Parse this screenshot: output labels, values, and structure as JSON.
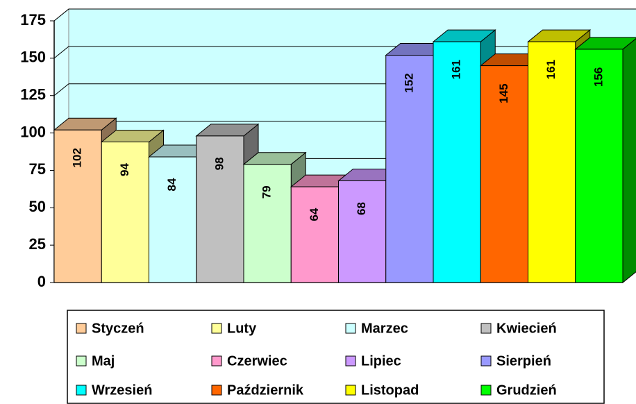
{
  "chart_data": {
    "type": "bar",
    "series": [
      {
        "name": "Styczeń",
        "color": "#ffcc99",
        "values": [
          102
        ]
      },
      {
        "name": "Luty",
        "color": "#ffff99",
        "values": [
          94
        ]
      },
      {
        "name": "Marzec",
        "color": "#ccffff",
        "values": [
          84
        ]
      },
      {
        "name": "Kwiecień",
        "color": "#c0c0c0",
        "values": [
          98
        ]
      },
      {
        "name": "Maj",
        "color": "#ccffcc",
        "values": [
          79
        ]
      },
      {
        "name": "Czerwiec",
        "color": "#ff99cc",
        "values": [
          64
        ]
      },
      {
        "name": "Lipiec",
        "color": "#cc99ff",
        "values": [
          68
        ]
      },
      {
        "name": "Sierpień",
        "color": "#9999ff",
        "values": [
          152
        ]
      },
      {
        "name": "Wrzesień",
        "color": "#00ffff",
        "values": [
          161
        ]
      },
      {
        "name": "Październik",
        "color": "#ff6600",
        "values": [
          145
        ]
      },
      {
        "name": "Listopad",
        "color": "#ffff00",
        "values": [
          161
        ]
      },
      {
        "name": "Grudzień",
        "color": "#00ff00",
        "values": [
          156
        ]
      }
    ],
    "ylim": [
      0,
      175
    ],
    "yticks": [
      0,
      25,
      50,
      75,
      100,
      125,
      150,
      175
    ],
    "grid": true,
    "legend": "bottom"
  }
}
